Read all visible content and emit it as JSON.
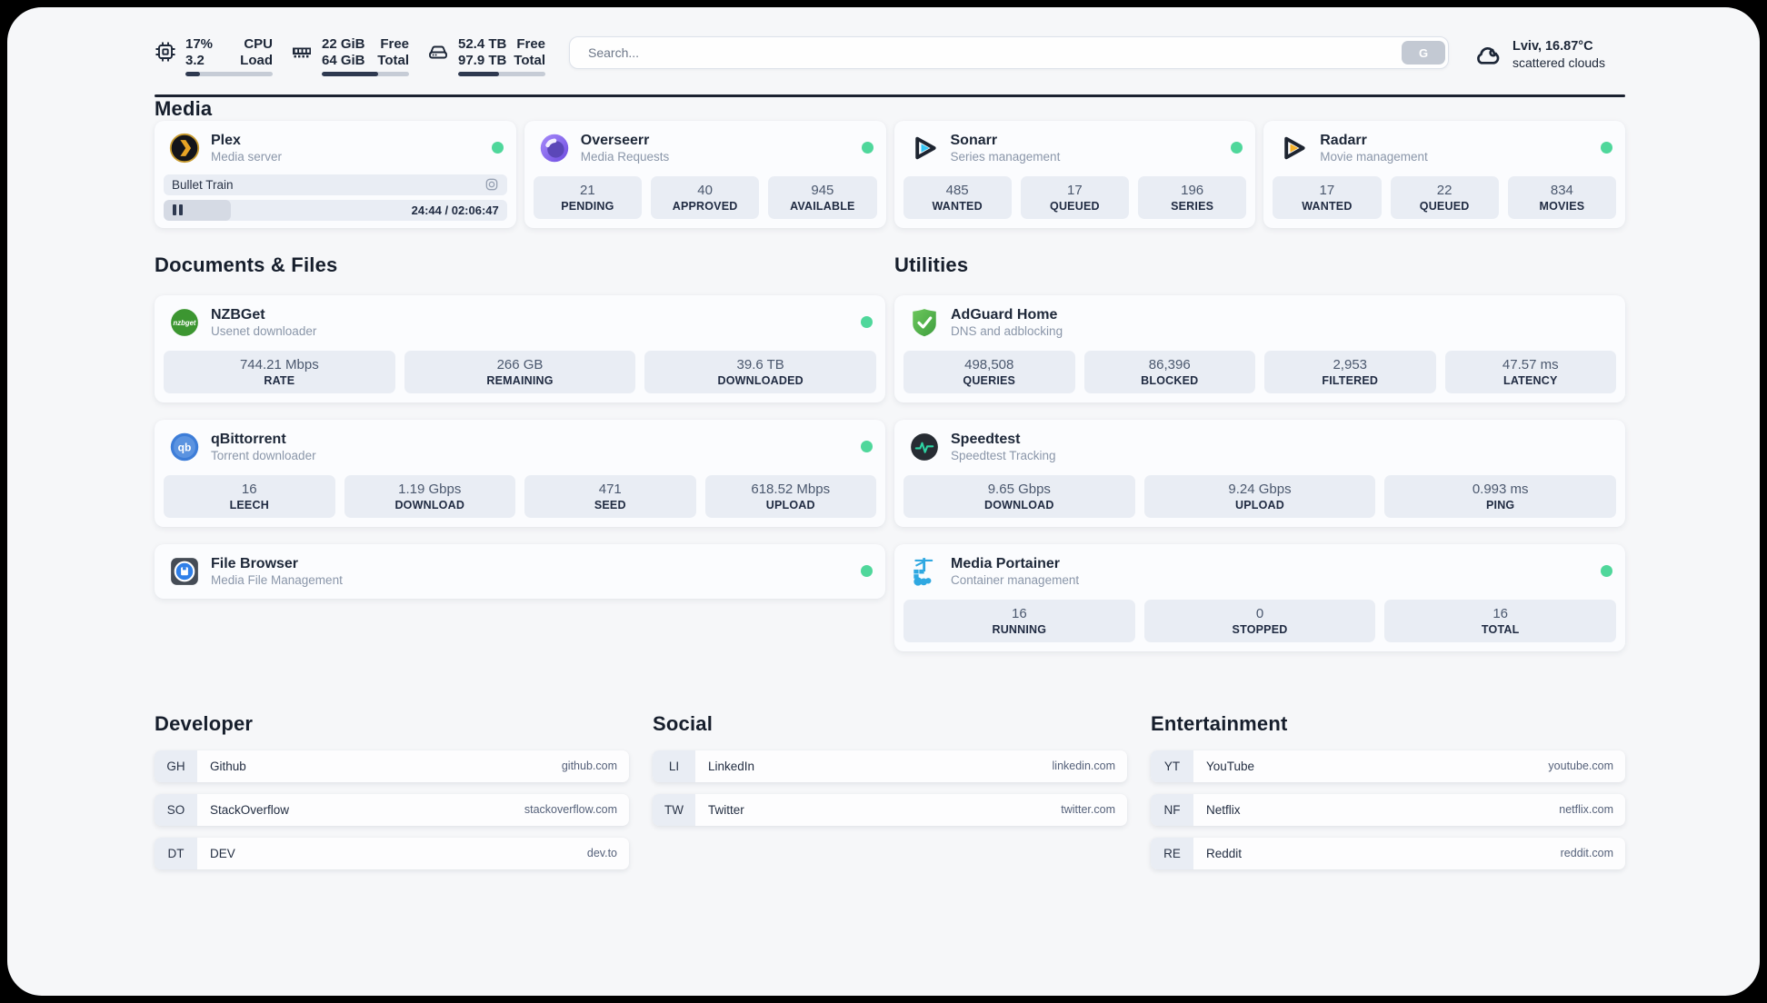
{
  "topbar": {
    "resources": [
      {
        "values": [
          "17%",
          "3.2"
        ],
        "labels": [
          "CPU",
          "Load"
        ],
        "progress": 17
      },
      {
        "values": [
          "22 GiB",
          "64 GiB"
        ],
        "labels": [
          "Free",
          "Total"
        ],
        "progress": 65
      },
      {
        "values": [
          "52.4 TB",
          "97.9 TB"
        ],
        "labels": [
          "Free",
          "Total"
        ],
        "progress": 47
      }
    ],
    "search": {
      "placeholder": "Search...",
      "button_label": "G"
    },
    "weather": {
      "location": "Lviv, 16.87°C",
      "condition": "scattered clouds"
    }
  },
  "sections": {
    "media": "Media",
    "documents": "Documents & Files",
    "utilities": "Utilities",
    "developer": "Developer",
    "social": "Social",
    "entertainment": "Entertainment"
  },
  "apps": {
    "plex": {
      "title": "Plex",
      "subtitle": "Media server",
      "now_playing": "Bullet Train",
      "time": "24:44 / 02:06:47",
      "progress": 19.5
    },
    "overseerr": {
      "title": "Overseerr",
      "subtitle": "Media Requests",
      "stats": [
        {
          "value": "21",
          "label": "PENDING"
        },
        {
          "value": "40",
          "label": "APPROVED"
        },
        {
          "value": "945",
          "label": "AVAILABLE"
        }
      ]
    },
    "sonarr": {
      "title": "Sonarr",
      "subtitle": "Series management",
      "stats": [
        {
          "value": "485",
          "label": "WANTED"
        },
        {
          "value": "17",
          "label": "QUEUED"
        },
        {
          "value": "196",
          "label": "SERIES"
        }
      ]
    },
    "radarr": {
      "title": "Radarr",
      "subtitle": "Movie management",
      "stats": [
        {
          "value": "17",
          "label": "WANTED"
        },
        {
          "value": "22",
          "label": "QUEUED"
        },
        {
          "value": "834",
          "label": "MOVIES"
        }
      ]
    },
    "nzbget": {
      "title": "NZBGet",
      "subtitle": "Usenet downloader",
      "stats": [
        {
          "value": "744.21 Mbps",
          "label": "RATE"
        },
        {
          "value": "266 GB",
          "label": "REMAINING"
        },
        {
          "value": "39.6 TB",
          "label": "DOWNLOADED"
        }
      ]
    },
    "qbittorrent": {
      "title": "qBittorrent",
      "subtitle": "Torrent downloader",
      "stats": [
        {
          "value": "16",
          "label": "LEECH"
        },
        {
          "value": "1.19 Gbps",
          "label": "DOWNLOAD"
        },
        {
          "value": "471",
          "label": "SEED"
        },
        {
          "value": "618.52 Mbps",
          "label": "UPLOAD"
        }
      ]
    },
    "filebrowser": {
      "title": "File Browser",
      "subtitle": "Media File Management"
    },
    "adguard": {
      "title": "AdGuard Home",
      "subtitle": "DNS and adblocking",
      "stats": [
        {
          "value": "498,508",
          "label": "QUERIES"
        },
        {
          "value": "86,396",
          "label": "BLOCKED"
        },
        {
          "value": "2,953",
          "label": "FILTERED"
        },
        {
          "value": "47.57 ms",
          "label": "LATENCY"
        }
      ]
    },
    "speedtest": {
      "title": "Speedtest",
      "subtitle": "Speedtest Tracking",
      "stats": [
        {
          "value": "9.65 Gbps",
          "label": "DOWNLOAD"
        },
        {
          "value": "9.24 Gbps",
          "label": "UPLOAD"
        },
        {
          "value": "0.993 ms",
          "label": "PING"
        }
      ]
    },
    "portainer": {
      "title": "Media Portainer",
      "subtitle": "Container management",
      "stats": [
        {
          "value": "16",
          "label": "RUNNING"
        },
        {
          "value": "0",
          "label": "STOPPED"
        },
        {
          "value": "16",
          "label": "TOTAL"
        }
      ]
    }
  },
  "bookmarks": {
    "developer": [
      {
        "abbr": "GH",
        "name": "Github",
        "url": "github.com"
      },
      {
        "abbr": "SO",
        "name": "StackOverflow",
        "url": "stackoverflow.com"
      },
      {
        "abbr": "DT",
        "name": "DEV",
        "url": "dev.to"
      }
    ],
    "social": [
      {
        "abbr": "LI",
        "name": "LinkedIn",
        "url": "linkedin.com"
      },
      {
        "abbr": "TW",
        "name": "Twitter",
        "url": "twitter.com"
      }
    ],
    "entertainment": [
      {
        "abbr": "YT",
        "name": "YouTube",
        "url": "youtube.com"
      },
      {
        "abbr": "NF",
        "name": "Netflix",
        "url": "netflix.com"
      },
      {
        "abbr": "RE",
        "name": "Reddit",
        "url": "reddit.com"
      }
    ]
  },
  "colors": {
    "status_online": "#4fd79b",
    "progress_fill": "#2e3950",
    "page_bg": "#f6f7f9",
    "stat_bg": "#e9edf4"
  }
}
